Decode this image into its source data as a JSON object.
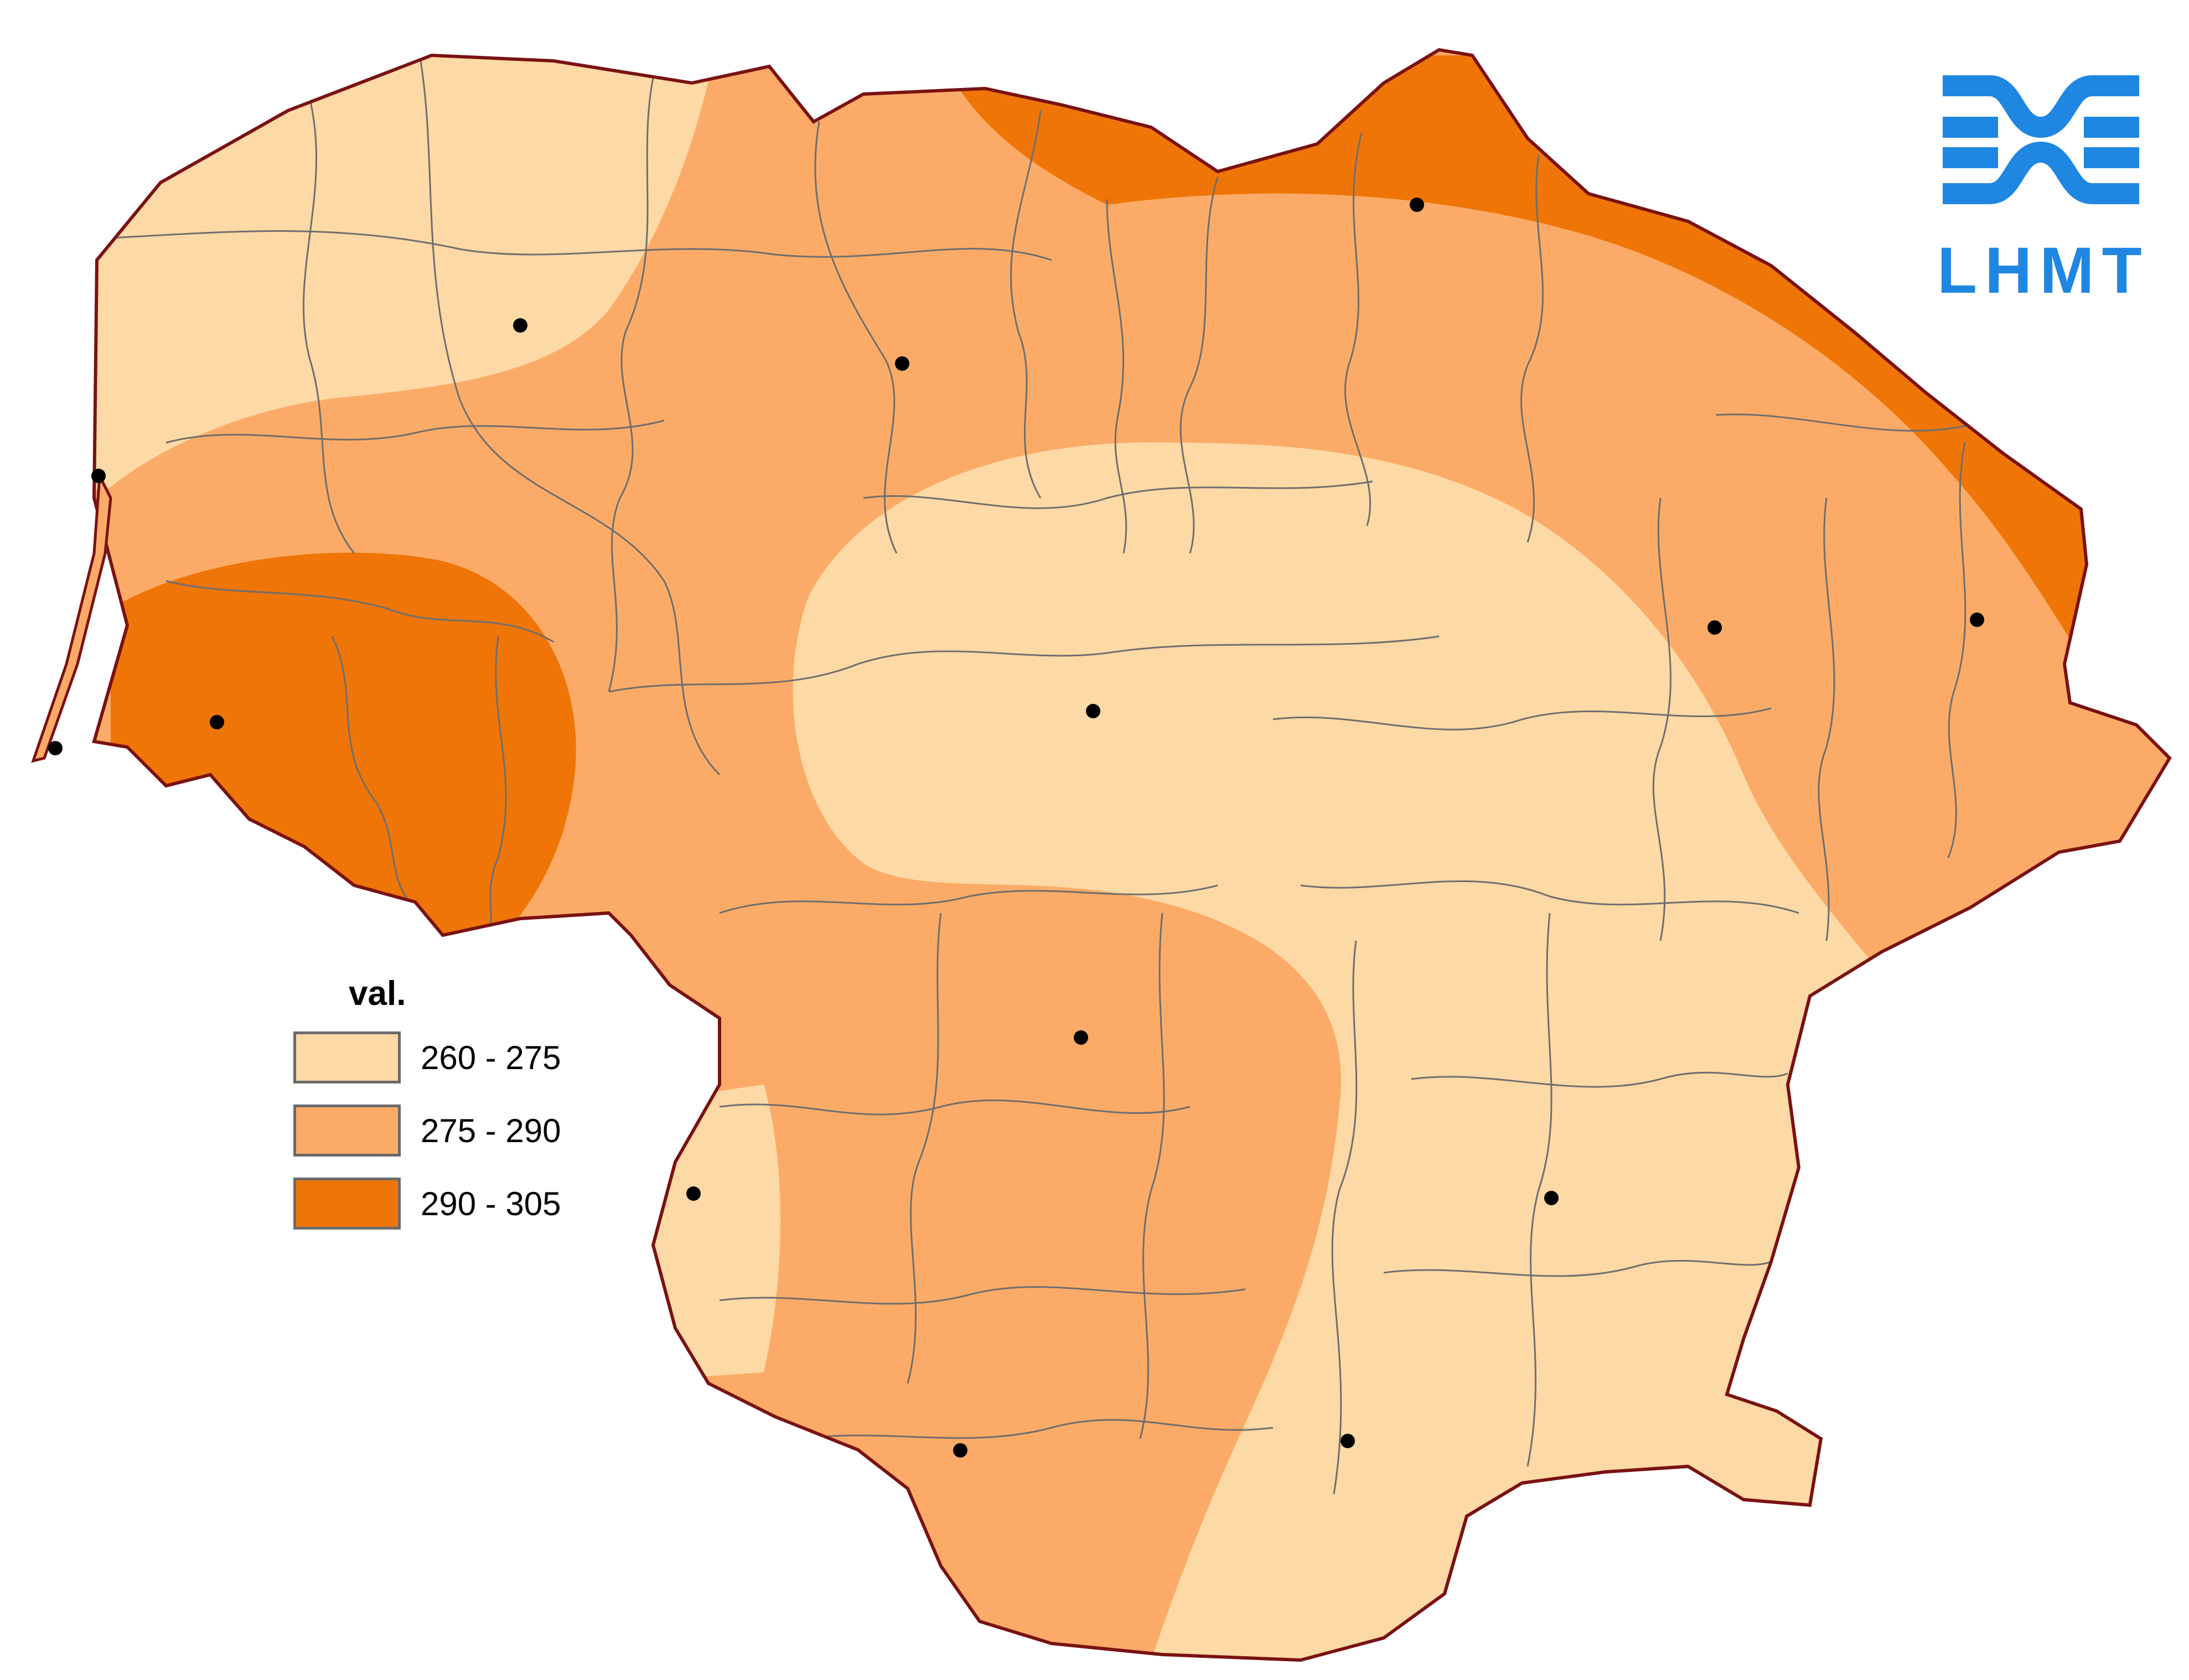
{
  "colors": {
    "low": "#fdd9a5",
    "mid": "#fbab67",
    "high": "#ef7507",
    "border": "#7a1212",
    "district": "#6e6e6e",
    "logo": "#1f86e2"
  },
  "legend": {
    "title": "val.",
    "items": [
      {
        "label": "260 - 275",
        "color": "#fdd9a5"
      },
      {
        "label": "275 - 290",
        "color": "#fbab67"
      },
      {
        "label": "290 - 305",
        "color": "#ef7507"
      }
    ]
  },
  "logo": {
    "text": "LHMT",
    "icon": "waves-emblem-icon"
  }
}
